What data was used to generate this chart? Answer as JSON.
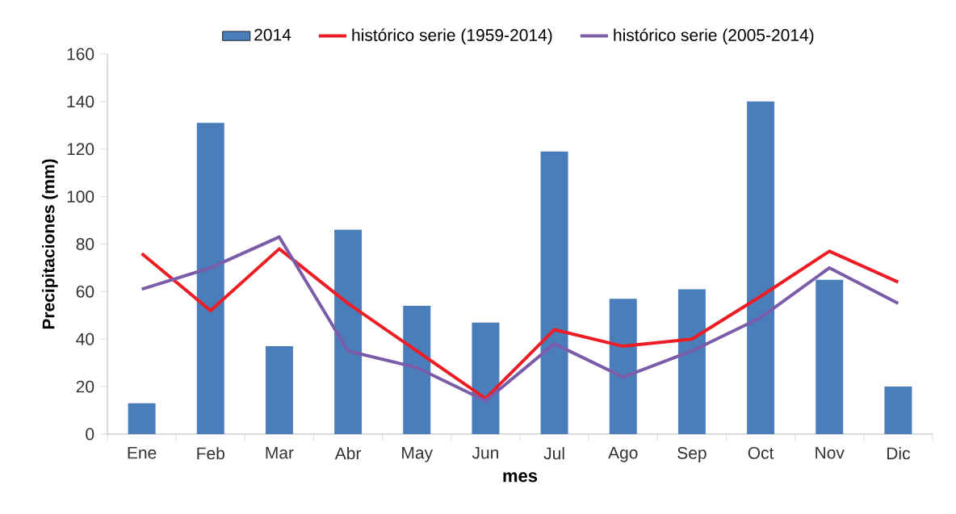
{
  "chart_data": {
    "type": "bar",
    "xlabel": "mes",
    "ylabel": "Precipitaciones (mm)",
    "categories": [
      "Ene",
      "Feb",
      "Mar",
      "Abr",
      "May",
      "Jun",
      "Jul",
      "Ago",
      "Sep",
      "Oct",
      "Nov",
      "Dic"
    ],
    "series": [
      {
        "name": "2014",
        "color": "#4a7ebb",
        "values": [
          13,
          131,
          37,
          86,
          54,
          47,
          119,
          57,
          61,
          140,
          65,
          20
        ]
      },
      {
        "name": "histórico serie (1959-2014)",
        "type": "line",
        "color": "#ee1c25",
        "values": [
          76,
          52,
          78,
          55,
          35,
          15,
          44,
          37,
          40,
          58,
          77,
          64
        ]
      },
      {
        "name": "histórico serie (2005-2014)",
        "type": "line",
        "color": "#7b5ca8",
        "values": [
          61,
          70,
          83,
          35,
          28,
          14,
          38,
          24,
          35,
          49,
          70,
          55
        ]
      }
    ],
    "ylim": [
      0,
      160
    ],
    "yticks": [
      0,
      20,
      40,
      60,
      80,
      100,
      120,
      140,
      160
    ],
    "legend": "top",
    "grid": false,
    "marker": "none",
    "line_style": "solid"
  }
}
